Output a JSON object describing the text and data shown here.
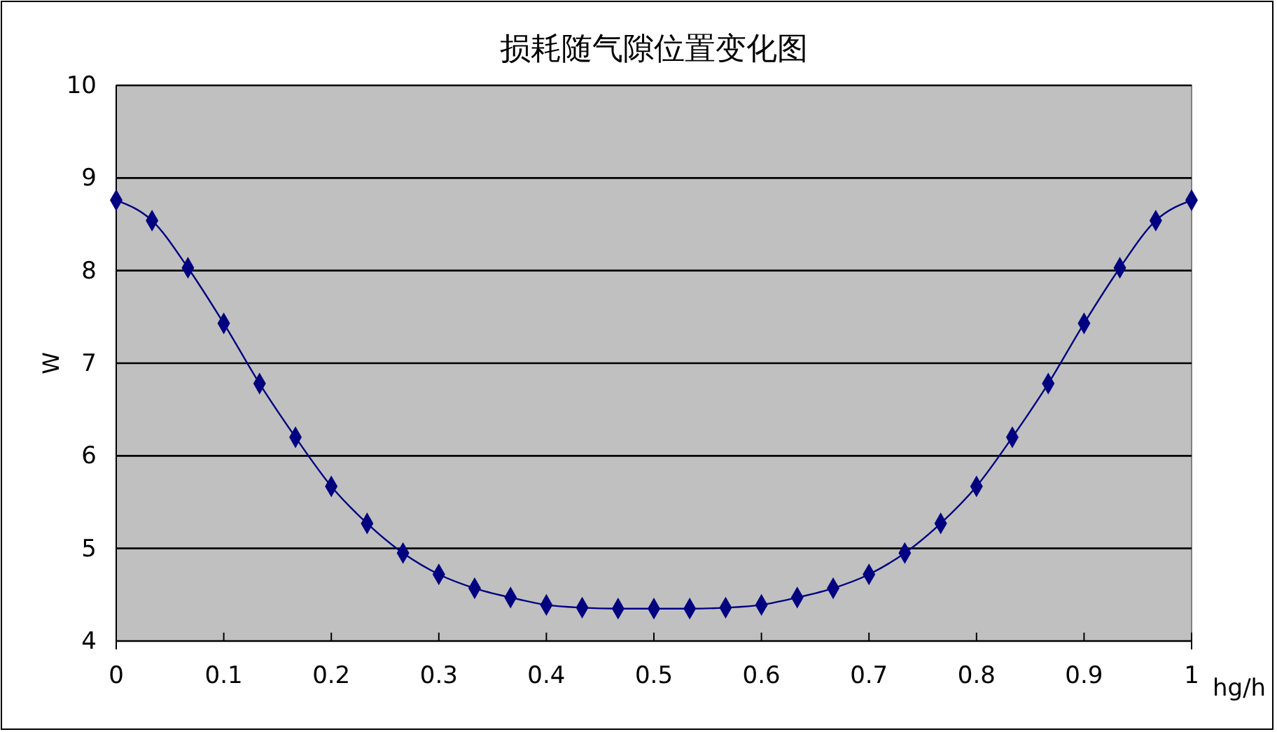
{
  "chart_data": {
    "type": "line",
    "title": "损耗随气隙位置变化图",
    "xlabel": "hg/h",
    "ylabel": "W",
    "x": [
      0,
      0.0333,
      0.0667,
      0.1,
      0.1333,
      0.1667,
      0.2,
      0.2333,
      0.2667,
      0.3,
      0.3333,
      0.3667,
      0.4,
      0.4333,
      0.4667,
      0.5,
      0.5333,
      0.5667,
      0.6,
      0.6333,
      0.6667,
      0.7,
      0.7333,
      0.7667,
      0.8,
      0.8333,
      0.8667,
      0.9,
      0.9333,
      0.9667,
      1
    ],
    "series": [
      {
        "color": "#000080",
        "values": [
          8.76,
          8.54,
          8.03,
          7.43,
          6.78,
          6.2,
          5.67,
          5.27,
          4.95,
          4.72,
          4.57,
          4.47,
          4.39,
          4.36,
          4.35,
          4.35,
          4.35,
          4.36,
          4.39,
          4.47,
          4.57,
          4.72,
          4.95,
          5.27,
          5.67,
          6.2,
          6.78,
          7.43,
          8.03,
          8.54,
          8.76
        ]
      }
    ],
    "xlim": [
      0,
      1
    ],
    "xticks": [
      0,
      0.1,
      0.2,
      0.3,
      0.4,
      0.5,
      0.6,
      0.7,
      0.8,
      0.9,
      1
    ],
    "ylim": [
      4,
      10
    ],
    "yticks": [
      4,
      5,
      6,
      7,
      8,
      9,
      10
    ],
    "grid": "y",
    "marker": "diamond",
    "line_style": "solid"
  }
}
